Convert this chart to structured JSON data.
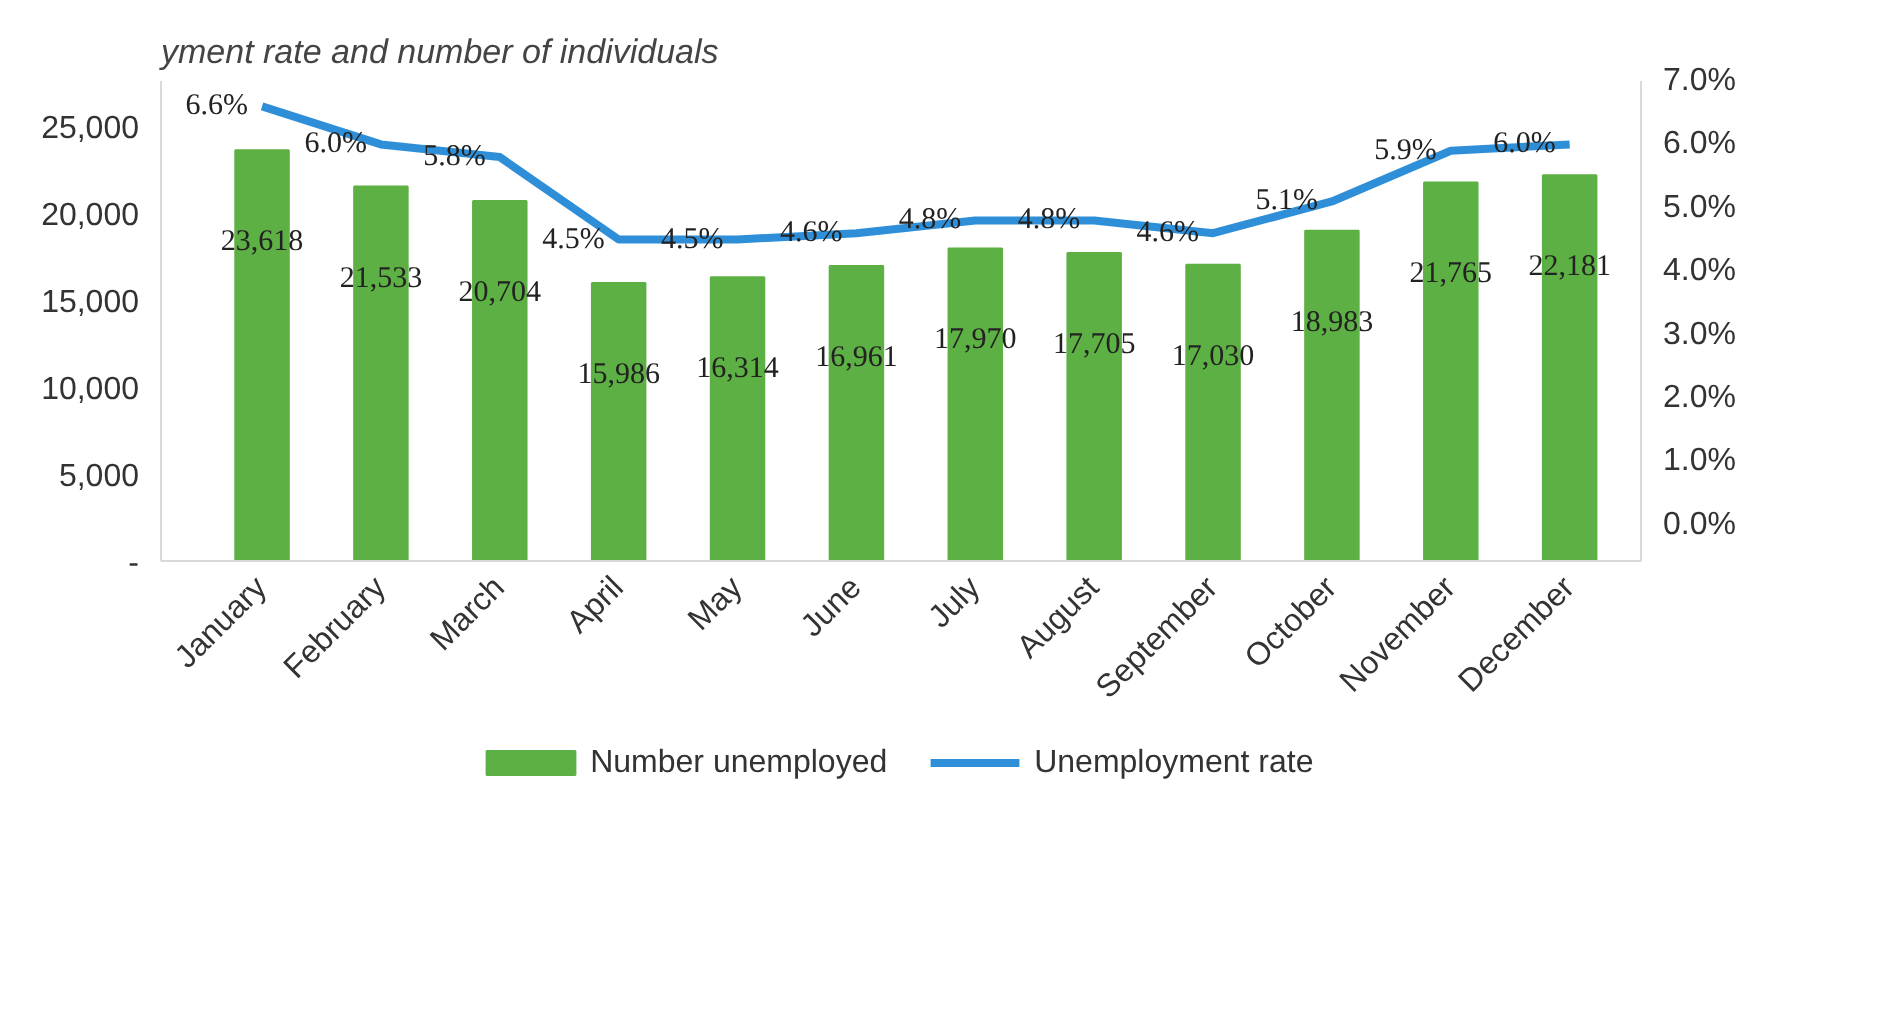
{
  "chart_data": {
    "type": "bar",
    "title": "yment rate and number of individuals",
    "categories": [
      "January",
      "February",
      "March",
      "April",
      "May",
      "June",
      "July",
      "August",
      "September",
      "October",
      "November",
      "December"
    ],
    "series": [
      {
        "name": "Number unemployed",
        "color": "#5db043",
        "values": [
          23618,
          21533,
          20704,
          15986,
          16314,
          16961,
          17970,
          17705,
          17030,
          18983,
          21765,
          22181
        ],
        "value_labels": [
          "23,618",
          "21,533",
          "20,704",
          "15,986",
          "16,314",
          "16,961",
          "17,970",
          "17,705",
          "17,030",
          "18,983",
          "21,765",
          "22,181"
        ]
      },
      {
        "name": "Unemployment rate",
        "type": "line",
        "axis": "y2",
        "color": "#2e8fd8",
        "values": [
          6.6,
          6.0,
          5.8,
          4.5,
          4.5,
          4.6,
          4.8,
          4.8,
          4.6,
          5.1,
          5.9,
          6.0
        ],
        "value_labels": [
          "6.6%",
          "6.0%",
          "5.8%",
          "4.5%",
          "4.5%",
          "4.6%",
          "4.8%",
          "4.8%",
          "4.6%",
          "5.1%",
          "5.9%",
          "6.0%"
        ]
      }
    ],
    "ylim": [
      0,
      27600
    ],
    "yticks": [
      {
        "value": 0,
        "label": "-"
      },
      {
        "value": 5000,
        "label": "5,000"
      },
      {
        "value": 10000,
        "label": "10,000"
      },
      {
        "value": 15000,
        "label": "15,000"
      },
      {
        "value": 20000,
        "label": "20,000"
      },
      {
        "value": 25000,
        "label": "25,000"
      }
    ],
    "y2lim": [
      -0.57,
      7.0
    ],
    "y2ticks": [
      {
        "value": 0,
        "label": "0.0%"
      },
      {
        "value": 1,
        "label": "1.0%"
      },
      {
        "value": 2,
        "label": "2.0%"
      },
      {
        "value": 3,
        "label": "3.0%"
      },
      {
        "value": 4,
        "label": "4.0%"
      },
      {
        "value": 5,
        "label": "5.0%"
      },
      {
        "value": 6,
        "label": "6.0%"
      },
      {
        "value": 7,
        "label": "7.0%"
      }
    ],
    "grid": false,
    "legend": "bottom",
    "marker": "none",
    "line_style": "solid"
  }
}
